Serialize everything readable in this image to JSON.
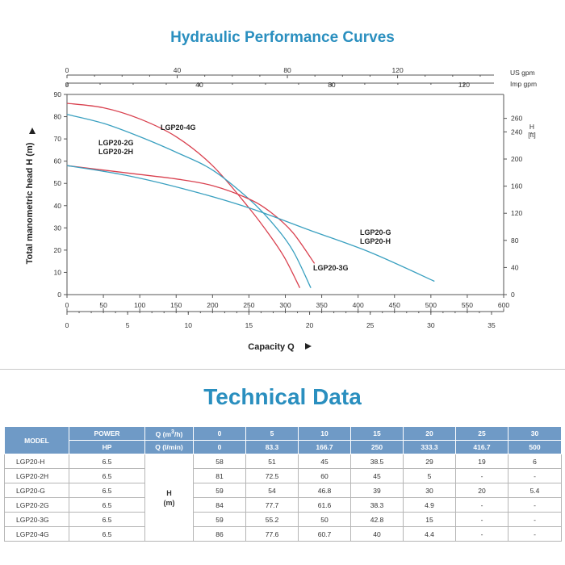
{
  "chart_data": {
    "type": "line",
    "title": "Hydraulic Performance Curves",
    "xlabel": "Capacity Q",
    "ylabel": "Total manometric head H (m)",
    "x_unit": "l/min",
    "xlim": [
      0,
      600
    ],
    "ylim": [
      0,
      90
    ],
    "x_ticks_lmin": [
      0,
      50,
      100,
      150,
      200,
      250,
      300,
      350,
      400,
      450,
      500,
      550,
      600
    ],
    "x_ticks_m3h": [
      0,
      5,
      10,
      15,
      20,
      25,
      30,
      35
    ],
    "y_ticks_m": [
      0,
      10,
      20,
      30,
      40,
      50,
      60,
      70,
      80,
      90
    ],
    "top_axis_us": {
      "unit": "US gpm",
      "ticks": [
        0,
        40,
        80,
        120
      ]
    },
    "top_axis_imp": {
      "unit": "Imp gpm",
      "ticks": [
        0,
        40,
        80,
        120
      ]
    },
    "right_axis": {
      "unit_top": "H",
      "unit_bottom": "[ft]",
      "ticks": [
        0,
        40,
        80,
        120,
        160,
        200,
        240,
        260
      ]
    },
    "grid": false,
    "series": [
      {
        "name": "LGP20-4G",
        "color": "#d9414f",
        "x": [
          0,
          50,
          100,
          150,
          200,
          250,
          280,
          300,
          320
        ],
        "y": [
          86,
          84,
          79,
          71,
          58,
          39,
          26,
          16,
          3
        ]
      },
      {
        "name": "LGP20-2G",
        "color": "#3aa0c0",
        "x": [
          0,
          50,
          100,
          150,
          200,
          250,
          280,
          310,
          335
        ],
        "y": [
          81,
          77,
          71,
          64,
          56,
          43,
          33,
          20,
          3
        ]
      },
      {
        "name": "LGP20-3G",
        "color": "#d9414f",
        "x": [
          0,
          50,
          100,
          150,
          200,
          250,
          280,
          310,
          340
        ],
        "y": [
          58,
          56,
          54,
          52,
          49,
          43,
          37,
          28,
          14
        ]
      },
      {
        "name": "LGP20-G",
        "color": "#3aa0c0",
        "x": [
          0,
          83.3,
          166.7,
          250,
          333.3,
          416.7,
          505
        ],
        "y": [
          58,
          53.5,
          47,
          39,
          29,
          19,
          6
        ]
      }
    ],
    "labels": {
      "l4g": "LGP20-4G",
      "l2g": "LGP20-2G",
      "l2h": "LGP20-2H",
      "lg": "LGP20-G",
      "lh": "LGP20-H",
      "l3g": "LGP20-3G"
    },
    "y_unit_right_top": "H",
    "y_unit_right_bottom": "[ft]"
  },
  "tech_title": "Technical Data",
  "table": {
    "model_header": "MODEL",
    "power_header": "POWER",
    "hp_header": "HP",
    "q_m3h_header": "Q (m³/h)",
    "q_lmin_header": "Q (l/min)",
    "q_m3h": [
      "0",
      "5",
      "10",
      "15",
      "20",
      "25",
      "30"
    ],
    "q_lmin": [
      "0",
      "83.3",
      "166.7",
      "250",
      "333.3",
      "416.7",
      "500"
    ],
    "h_label": "H",
    "h_unit": "(m)",
    "rows": [
      {
        "model": "LGP20-H",
        "hp": "6.5",
        "values": [
          "58",
          "51",
          "45",
          "38.5",
          "29",
          "19",
          "6"
        ]
      },
      {
        "model": "LGP20-2H",
        "hp": "6.5",
        "values": [
          "81",
          "72.5",
          "60",
          "45",
          "5",
          "-",
          "-"
        ]
      },
      {
        "model": "LGP20-G",
        "hp": "6.5",
        "values": [
          "59",
          "54",
          "46.8",
          "39",
          "30",
          "20",
          "5.4"
        ]
      },
      {
        "model": "LGP20-2G",
        "hp": "6.5",
        "values": [
          "84",
          "77.7",
          "61.6",
          "38.3",
          "4.9",
          "-",
          "-"
        ]
      },
      {
        "model": "LGP20-3G",
        "hp": "6.5",
        "values": [
          "59",
          "55.2",
          "50",
          "42.8",
          "15",
          "-",
          "-"
        ]
      },
      {
        "model": "LGP20-4G",
        "hp": "6.5",
        "values": [
          "86",
          "77.6",
          "60.7",
          "40",
          "4.4",
          "-",
          "-"
        ]
      }
    ]
  }
}
